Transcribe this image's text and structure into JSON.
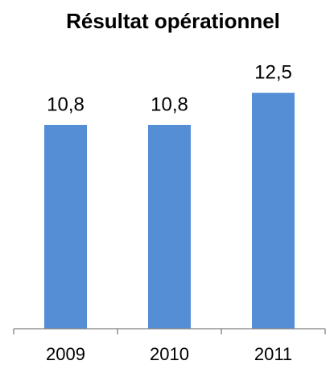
{
  "chart_data": {
    "type": "bar",
    "title": "Résultat opérationnel",
    "categories": [
      "2009",
      "2010",
      "2011"
    ],
    "values": [
      10.8,
      10.8,
      12.5
    ],
    "value_labels": [
      "10,8",
      "10,8",
      "12,5"
    ],
    "color": "#558ed5",
    "ylim": [
      0,
      14
    ]
  }
}
